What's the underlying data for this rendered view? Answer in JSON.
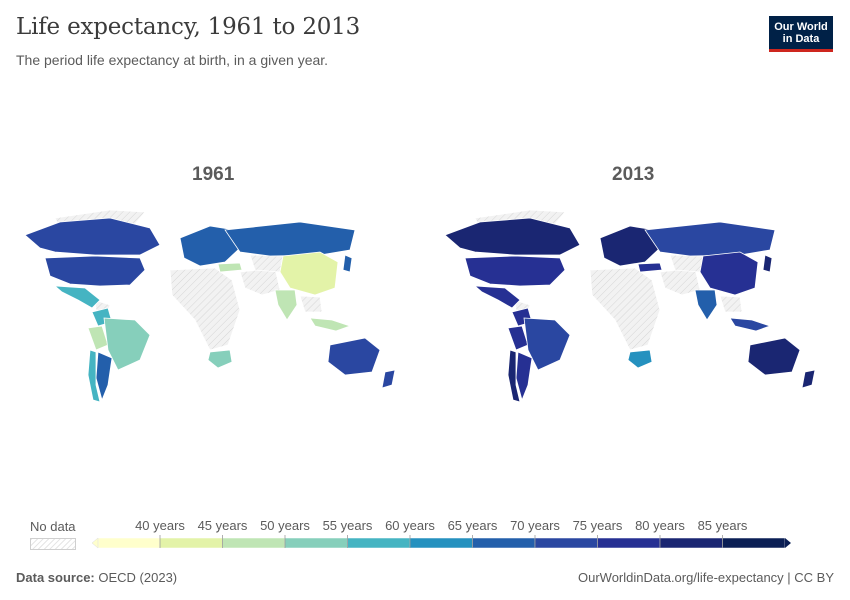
{
  "header": {
    "title": "Life expectancy, 1961 to 2013",
    "subtitle": "The period life expectancy at birth, in a given year.",
    "logo_line1": "Our World",
    "logo_line2": "in Data"
  },
  "panels": [
    {
      "year_label": "1961"
    },
    {
      "year_label": "2013"
    }
  ],
  "legend": {
    "no_data_label": "No data",
    "bins": [
      {
        "label": "",
        "color": "#ffffcc"
      },
      {
        "label": "40 years",
        "color": "#e3f3a8"
      },
      {
        "label": "45 years",
        "color": "#bfe5b4"
      },
      {
        "label": "50 years",
        "color": "#86cfbb"
      },
      {
        "label": "55 years",
        "color": "#45b4c2"
      },
      {
        "label": "60 years",
        "color": "#2591bf"
      },
      {
        "label": "65 years",
        "color": "#235fab"
      },
      {
        "label": "70 years",
        "color": "#2a47a1"
      },
      {
        "label": "75 years",
        "color": "#263093"
      },
      {
        "label": "80 years",
        "color": "#1a2672"
      },
      {
        "label": "85 years",
        "color": "#0b1f55"
      }
    ]
  },
  "map_colors": {
    "no_data": "#eeeeee",
    "border": "#ffffff"
  },
  "chart_data": {
    "type": "choropleth",
    "title": "Life expectancy, 1961 to 2013",
    "units": "years",
    "years": [
      "1961",
      "2013"
    ],
    "regions": [
      {
        "name": "Canada",
        "1961": 71,
        "2013": 81
      },
      {
        "name": "United States",
        "1961": 70,
        "2013": 79
      },
      {
        "name": "Mexico",
        "1961": 58,
        "2013": 75
      },
      {
        "name": "Colombia",
        "1961": 57,
        "2013": 76
      },
      {
        "name": "Peru",
        "1961": 48,
        "2013": 75
      },
      {
        "name": "Brazil",
        "1961": 53,
        "2013": 74
      },
      {
        "name": "Chile",
        "1961": 57,
        "2013": 80
      },
      {
        "name": "Argentina",
        "1961": 65,
        "2013": 76
      },
      {
        "name": "Europe",
        "1961": 68,
        "2013": 80
      },
      {
        "name": "Russia",
        "1961": 67,
        "2013": 71
      },
      {
        "name": "Turkey",
        "1961": 46,
        "2013": 76
      },
      {
        "name": "China",
        "1961": 44,
        "2013": 76
      },
      {
        "name": "India",
        "1961": 45,
        "2013": 68
      },
      {
        "name": "Indonesia",
        "1961": 48,
        "2013": 70
      },
      {
        "name": "Japan",
        "1961": 68,
        "2013": 84
      },
      {
        "name": "South Africa",
        "1961": 51,
        "2013": 60
      },
      {
        "name": "Australia",
        "1961": 71,
        "2013": 82
      },
      {
        "name": "New Zealand",
        "1961": 71,
        "2013": 81
      }
    ]
  },
  "footer": {
    "source_label": "Data source:",
    "source_value": "OECD (2023)",
    "url": "OurWorldinData.org/life-expectancy | CC BY"
  }
}
